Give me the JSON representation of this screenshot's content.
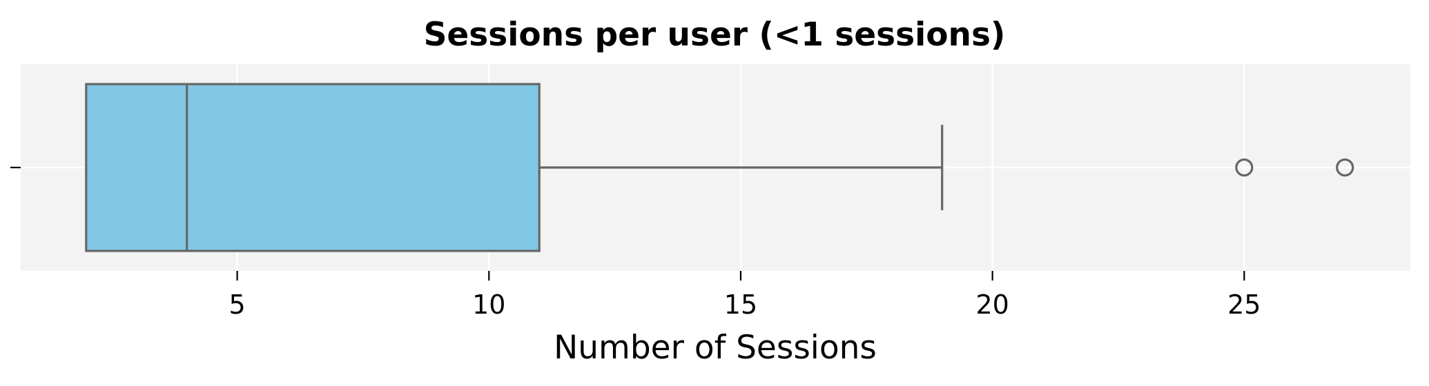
{
  "chart_data": {
    "type": "box",
    "orientation": "horizontal",
    "title": "Sessions per user (<1 sessions)",
    "xlabel": "Number of Sessions",
    "ylabel": "",
    "xlim": [
      0.7,
      28.3
    ],
    "xticks": [
      5,
      10,
      15,
      20,
      25
    ],
    "xtick_labels": [
      "5",
      "10",
      "15",
      "20",
      "25"
    ],
    "grid": true,
    "box": {
      "min_whisker": 2,
      "q1": 2,
      "median": 4,
      "q3": 11,
      "max_whisker": 19,
      "outliers": [
        25,
        27
      ]
    },
    "colors": {
      "box_fill": "#82c8e6",
      "box_edge": "#666666",
      "plot_background": "#f3f3f3",
      "grid": "#ffffff"
    }
  }
}
